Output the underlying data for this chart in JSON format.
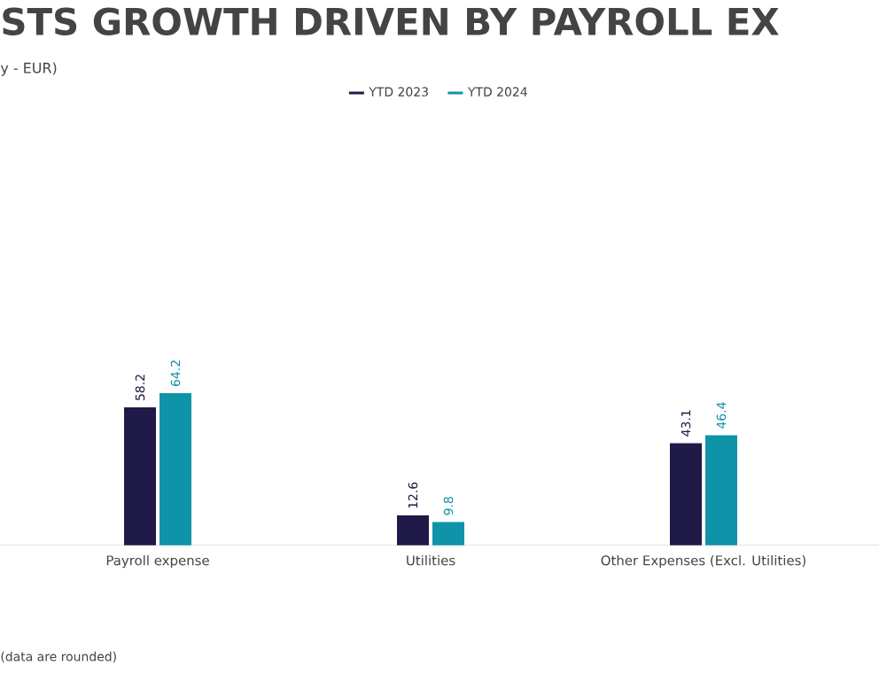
{
  "chart_data": {
    "type": "bar",
    "title": "STS GROWTH DRIVEN BY PAYROLL EX",
    "subtitle": "y - EUR)",
    "categories": [
      "Payroll expense",
      "Utilities",
      "Other Expenses (Excl. Utilities)"
    ],
    "series": [
      {
        "name": "YTD 2023",
        "color": "#1f1a47",
        "values": [
          58.2,
          12.6,
          43.1
        ]
      },
      {
        "name": "YTD 2024",
        "color": "#0e93a8",
        "values": [
          64.2,
          9.8,
          46.4
        ]
      }
    ],
    "data_labels": true,
    "legend": "top",
    "annotations": [
      "(data are rounded)"
    ]
  }
}
